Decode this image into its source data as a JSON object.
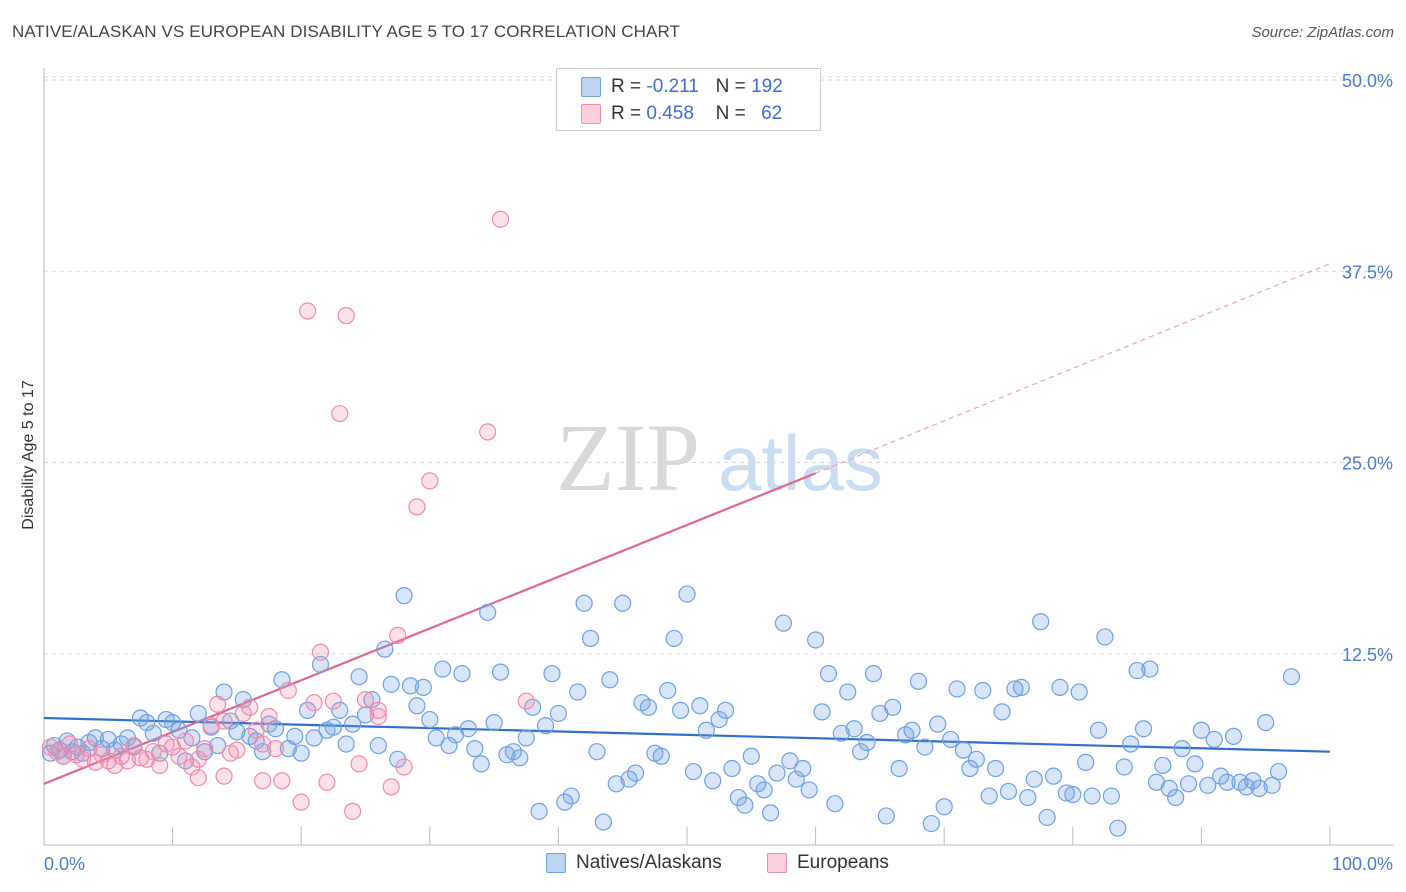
{
  "title": "NATIVE/ALASKAN VS EUROPEAN DISABILITY AGE 5 TO 17 CORRELATION CHART",
  "source": "Source: ZipAtlas.com",
  "watermark": {
    "zip": "ZIP",
    "atlas": "atlas"
  },
  "legend": {
    "rows": [
      {
        "r_label": "R =",
        "r_value": "-0.211",
        "n_label": "N =",
        "n_value": "192",
        "color": "#6fa0e0"
      },
      {
        "r_label": "R =",
        "r_value": "0.458",
        "n_label": "N =",
        "n_value": "62",
        "color": "#f08aab"
      }
    ]
  },
  "bottom_legend": [
    {
      "label": "Natives/Alaskans",
      "color": "#6fa0e0"
    },
    {
      "label": "Europeans",
      "color": "#f08aab"
    }
  ],
  "chart_data": {
    "type": "scatter",
    "title": "NATIVE/ALASKAN VS EUROPEAN DISABILITY AGE 5 TO 17 CORRELATION CHART",
    "xlabel": "",
    "ylabel": "Disability Age 5 to 17",
    "xlim": [
      0,
      100
    ],
    "ylim": [
      0,
      50
    ],
    "x_tick_labels": [
      "0.0%",
      "100.0%"
    ],
    "y_ticks": [
      12.5,
      25.0,
      37.5,
      50.0
    ],
    "y_tick_labels": [
      "12.5%",
      "25.0%",
      "37.5%",
      "50.0%"
    ],
    "grid": "horizontal dashed",
    "series": [
      {
        "name": "Natives/Alaskans",
        "color": "#6fa0e0",
        "trend": {
          "x0": 0,
          "y0": 8.3,
          "x1": 100,
          "y1": 6.1
        },
        "points": [
          [
            0.5,
            6.0
          ],
          [
            0.8,
            6.5
          ],
          [
            1.2,
            6.2
          ],
          [
            1.5,
            5.8
          ],
          [
            1.8,
            6.8
          ],
          [
            2.2,
            6.1
          ],
          [
            2.6,
            6.4
          ],
          [
            3.0,
            6.0
          ],
          [
            3.5,
            6.7
          ],
          [
            4.0,
            7.0
          ],
          [
            4.5,
            6.3
          ],
          [
            5.0,
            6.9
          ],
          [
            5.5,
            6.2
          ],
          [
            6.0,
            6.6
          ],
          [
            6.5,
            7.0
          ],
          [
            7.0,
            6.4
          ],
          [
            7.5,
            8.3
          ],
          [
            8.0,
            8.0
          ],
          [
            8.5,
            7.3
          ],
          [
            9.0,
            6.0
          ],
          [
            9.5,
            8.2
          ],
          [
            10.0,
            8.0
          ],
          [
            10.5,
            7.5
          ],
          [
            11.0,
            5.5
          ],
          [
            11.5,
            7.0
          ],
          [
            12.0,
            8.6
          ],
          [
            12.5,
            6.1
          ],
          [
            13.0,
            7.7
          ],
          [
            13.5,
            6.5
          ],
          [
            14.0,
            10.0
          ],
          [
            14.5,
            8.1
          ],
          [
            15.0,
            7.4
          ],
          [
            15.5,
            9.5
          ],
          [
            16.0,
            7.1
          ],
          [
            16.5,
            6.8
          ],
          [
            17.0,
            6.1
          ],
          [
            17.5,
            7.9
          ],
          [
            18.0,
            7.6
          ],
          [
            18.5,
            10.8
          ],
          [
            19.0,
            6.3
          ],
          [
            19.5,
            7.1
          ],
          [
            20.0,
            6.0
          ],
          [
            20.5,
            8.8
          ],
          [
            21.0,
            7.0
          ],
          [
            21.5,
            11.8
          ],
          [
            22.0,
            7.5
          ],
          [
            22.5,
            7.7
          ],
          [
            23.0,
            8.8
          ],
          [
            23.5,
            6.6
          ],
          [
            24.0,
            7.9
          ],
          [
            24.5,
            11.0
          ],
          [
            25.0,
            8.5
          ],
          [
            25.5,
            9.5
          ],
          [
            26.0,
            6.5
          ],
          [
            26.5,
            12.8
          ],
          [
            27.0,
            10.5
          ],
          [
            27.5,
            5.6
          ],
          [
            28.0,
            16.3
          ],
          [
            28.5,
            10.4
          ],
          [
            29.0,
            9.1
          ],
          [
            29.5,
            10.3
          ],
          [
            30.0,
            8.2
          ],
          [
            30.5,
            7.0
          ],
          [
            31.0,
            11.5
          ],
          [
            31.5,
            6.5
          ],
          [
            32.0,
            7.2
          ],
          [
            32.5,
            11.2
          ],
          [
            33.0,
            7.6
          ],
          [
            33.5,
            6.3
          ],
          [
            34.0,
            5.3
          ],
          [
            34.5,
            15.2
          ],
          [
            35.0,
            8.0
          ],
          [
            35.5,
            11.3
          ],
          [
            36.0,
            5.9
          ],
          [
            36.5,
            6.1
          ],
          [
            37.0,
            5.7
          ],
          [
            37.5,
            7.0
          ],
          [
            38.0,
            9.0
          ],
          [
            38.5,
            2.2
          ],
          [
            39.0,
            7.8
          ],
          [
            39.5,
            11.2
          ],
          [
            40.0,
            8.6
          ],
          [
            40.5,
            2.8
          ],
          [
            41.0,
            3.2
          ],
          [
            41.5,
            10.0
          ],
          [
            42.0,
            15.8
          ],
          [
            42.5,
            13.5
          ],
          [
            43.0,
            6.1
          ],
          [
            43.5,
            1.5
          ],
          [
            44.0,
            10.8
          ],
          [
            44.5,
            4.0
          ],
          [
            45.0,
            15.8
          ],
          [
            45.5,
            4.3
          ],
          [
            46.0,
            4.7
          ],
          [
            46.5,
            9.3
          ],
          [
            47.0,
            9.0
          ],
          [
            47.5,
            6.0
          ],
          [
            48.0,
            5.8
          ],
          [
            48.5,
            10.1
          ],
          [
            49.0,
            13.5
          ],
          [
            49.5,
            8.8
          ],
          [
            50.0,
            16.4
          ],
          [
            50.5,
            4.8
          ],
          [
            51.0,
            9.1
          ],
          [
            51.5,
            7.5
          ],
          [
            52.0,
            4.2
          ],
          [
            52.5,
            8.2
          ],
          [
            53.0,
            8.8
          ],
          [
            53.5,
            5.0
          ],
          [
            54.0,
            3.1
          ],
          [
            54.5,
            2.6
          ],
          [
            55.0,
            5.8
          ],
          [
            55.5,
            4.0
          ],
          [
            56.0,
            3.6
          ],
          [
            56.5,
            2.1
          ],
          [
            57.0,
            4.7
          ],
          [
            57.5,
            14.5
          ],
          [
            58.0,
            5.5
          ],
          [
            58.5,
            4.3
          ],
          [
            59.0,
            5.0
          ],
          [
            59.5,
            3.6
          ],
          [
            60.0,
            13.4
          ],
          [
            60.5,
            8.7
          ],
          [
            61.0,
            11.2
          ],
          [
            61.5,
            2.7
          ],
          [
            62.0,
            7.3
          ],
          [
            62.5,
            10.0
          ],
          [
            63.0,
            7.6
          ],
          [
            63.5,
            6.1
          ],
          [
            64.0,
            6.7
          ],
          [
            64.5,
            11.2
          ],
          [
            65.0,
            8.6
          ],
          [
            65.5,
            1.9
          ],
          [
            66.0,
            9.0
          ],
          [
            66.5,
            5.0
          ],
          [
            67.0,
            7.2
          ],
          [
            67.5,
            7.5
          ],
          [
            68.0,
            10.7
          ],
          [
            68.5,
            6.4
          ],
          [
            69.0,
            1.4
          ],
          [
            69.5,
            7.9
          ],
          [
            70.0,
            2.5
          ],
          [
            70.5,
            6.9
          ],
          [
            71.0,
            10.2
          ],
          [
            71.5,
            6.2
          ],
          [
            72.0,
            5.0
          ],
          [
            72.5,
            5.6
          ],
          [
            73.0,
            10.1
          ],
          [
            73.5,
            3.2
          ],
          [
            74.0,
            5.0
          ],
          [
            74.5,
            8.7
          ],
          [
            75.0,
            3.5
          ],
          [
            75.5,
            10.2
          ],
          [
            76.0,
            10.3
          ],
          [
            76.5,
            3.1
          ],
          [
            77.0,
            4.3
          ],
          [
            77.5,
            14.6
          ],
          [
            78.0,
            1.8
          ],
          [
            78.5,
            4.5
          ],
          [
            79.0,
            10.3
          ],
          [
            79.5,
            3.4
          ],
          [
            80.0,
            3.3
          ],
          [
            80.5,
            10.0
          ],
          [
            81.0,
            5.4
          ],
          [
            81.5,
            3.2
          ],
          [
            82.0,
            7.5
          ],
          [
            82.5,
            13.6
          ],
          [
            83.0,
            3.2
          ],
          [
            83.5,
            1.1
          ],
          [
            84.0,
            5.1
          ],
          [
            84.5,
            6.6
          ],
          [
            85.0,
            11.4
          ],
          [
            85.5,
            7.6
          ],
          [
            86.0,
            11.5
          ],
          [
            86.5,
            4.1
          ],
          [
            87.0,
            5.2
          ],
          [
            87.5,
            3.7
          ],
          [
            88.0,
            3.1
          ],
          [
            88.5,
            6.3
          ],
          [
            89.0,
            4.0
          ],
          [
            89.5,
            5.3
          ],
          [
            90.0,
            7.5
          ],
          [
            90.5,
            3.9
          ],
          [
            91.0,
            6.9
          ],
          [
            91.5,
            4.5
          ],
          [
            92.0,
            4.1
          ],
          [
            92.5,
            7.1
          ],
          [
            93.0,
            4.1
          ],
          [
            93.5,
            3.8
          ],
          [
            94.0,
            4.2
          ],
          [
            94.5,
            3.7
          ],
          [
            95.0,
            8.0
          ],
          [
            95.5,
            3.9
          ],
          [
            96.0,
            4.8
          ],
          [
            97.0,
            11.0
          ]
        ]
      },
      {
        "name": "Europeans",
        "color": "#f08aab",
        "trend": {
          "x0": 0,
          "y0": 4.0,
          "x1": 60,
          "y1": 24.3,
          "dashed_to": {
            "x": 100,
            "y": 38.0
          }
        },
        "points": [
          [
            0.5,
            6.4
          ],
          [
            1.0,
            6.1
          ],
          [
            1.5,
            5.8
          ],
          [
            2.0,
            6.6
          ],
          [
            2.5,
            5.9
          ],
          [
            3.0,
            5.6
          ],
          [
            3.5,
            6.3
          ],
          [
            4.0,
            5.4
          ],
          [
            4.5,
            5.9
          ],
          [
            5.0,
            5.5
          ],
          [
            5.5,
            5.2
          ],
          [
            6.0,
            5.8
          ],
          [
            6.5,
            5.5
          ],
          [
            7.0,
            6.5
          ],
          [
            7.5,
            5.7
          ],
          [
            8.0,
            5.6
          ],
          [
            8.5,
            6.1
          ],
          [
            9.0,
            5.2
          ],
          [
            9.5,
            6.6
          ],
          [
            10.0,
            6.4
          ],
          [
            10.5,
            5.8
          ],
          [
            11.0,
            6.8
          ],
          [
            11.5,
            5.1
          ],
          [
            12.0,
            5.6
          ],
          [
            12.5,
            6.3
          ],
          [
            13.0,
            7.8
          ],
          [
            13.5,
            9.2
          ],
          [
            14.0,
            8.1
          ],
          [
            14.5,
            6.0
          ],
          [
            15.0,
            6.2
          ],
          [
            15.5,
            8.6
          ],
          [
            16.0,
            9.0
          ],
          [
            16.5,
            7.5
          ],
          [
            17.0,
            6.6
          ],
          [
            17.5,
            8.4
          ],
          [
            18.0,
            6.3
          ],
          [
            18.5,
            4.2
          ],
          [
            19.0,
            10.1
          ],
          [
            20.0,
            2.8
          ],
          [
            20.5,
            34.9
          ],
          [
            21.0,
            9.3
          ],
          [
            21.5,
            12.6
          ],
          [
            22.0,
            4.1
          ],
          [
            22.5,
            9.4
          ],
          [
            23.0,
            28.2
          ],
          [
            23.5,
            34.6
          ],
          [
            24.0,
            2.2
          ],
          [
            24.5,
            5.3
          ],
          [
            25.0,
            9.5
          ],
          [
            26.0,
            8.8
          ],
          [
            27.0,
            3.8
          ],
          [
            27.5,
            13.7
          ],
          [
            28.0,
            5.1
          ],
          [
            29.0,
            22.1
          ],
          [
            30.0,
            23.8
          ],
          [
            34.5,
            27.0
          ],
          [
            35.5,
            40.9
          ],
          [
            37.5,
            9.4
          ],
          [
            14.0,
            4.5
          ],
          [
            12.0,
            4.4
          ],
          [
            17.0,
            4.2
          ],
          [
            26.0,
            8.4
          ]
        ]
      }
    ]
  }
}
